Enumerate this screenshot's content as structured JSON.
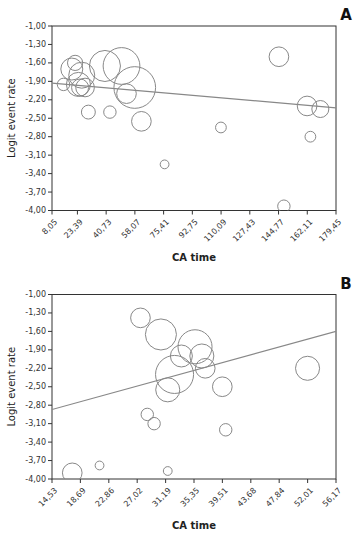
{
  "chart_data": [
    {
      "type": "scatter",
      "title": "A",
      "xlabel": "CA time",
      "ylabel": "Logit event rate",
      "grid": false,
      "series": [
        {
          "type": "scatter",
          "marker": "circle",
          "color": "#888888",
          "x": [
            15,
            20,
            22,
            24,
            25,
            26,
            28,
            30,
            40,
            43,
            50,
            53,
            58,
            62,
            76,
            110,
            145,
            148,
            162,
            164,
            170
          ],
          "values": [
            -1.95,
            -1.7,
            -1.6,
            -1.95,
            -2.0,
            -1.8,
            -2.0,
            -2.4,
            -1.65,
            -2.4,
            -1.65,
            -2.1,
            -2.0,
            -2.55,
            -3.25,
            -2.65,
            -1.5,
            -3.93,
            -2.3,
            -2.8,
            -2.35
          ],
          "sizes": [
            80,
            250,
            120,
            300,
            150,
            350,
            180,
            100,
            500,
            80,
            700,
            200,
            900,
            200,
            40,
            60,
            200,
            80,
            200,
            60,
            150
          ]
        },
        {
          "type": "line",
          "color": "#888888",
          "x": [
            8.05,
            179.45
          ],
          "values": [
            -1.93,
            -2.33
          ]
        }
      ],
      "xlim": [
        8.05,
        179.45
      ],
      "ylim": [
        -4.0,
        -1.0
      ],
      "xticks": [
        {
          "value": 8.05,
          "label": "8,05"
        },
        {
          "value": 23.39,
          "label": "23,39"
        },
        {
          "value": 40.73,
          "label": "40,73"
        },
        {
          "value": 58.07,
          "label": "58,07"
        },
        {
          "value": 75.41,
          "label": "75,41"
        },
        {
          "value": 92.75,
          "label": "92,75"
        },
        {
          "value": 110.09,
          "label": "110,09"
        },
        {
          "value": 127.43,
          "label": "127,43"
        },
        {
          "value": 144.77,
          "label": "144,77"
        },
        {
          "value": 162.11,
          "label": "162,11"
        },
        {
          "value": 179.45,
          "label": "179,45"
        }
      ],
      "yticks": [
        {
          "value": -4.0,
          "label": "-4,00"
        },
        {
          "value": -3.7,
          "label": "-3,70"
        },
        {
          "value": -3.4,
          "label": "-3,40"
        },
        {
          "value": -3.1,
          "label": "-3,10"
        },
        {
          "value": -2.8,
          "label": "-2,80"
        },
        {
          "value": -2.5,
          "label": "-2,50"
        },
        {
          "value": -2.2,
          "label": "-2,20"
        },
        {
          "value": -1.9,
          "label": "-1,90"
        },
        {
          "value": -1.6,
          "label": "-1,60"
        },
        {
          "value": -1.3,
          "label": "-1,30"
        },
        {
          "value": -1.0,
          "label": "-1,00"
        }
      ]
    },
    {
      "type": "scatter",
      "title": "B",
      "xlabel": "CA time",
      "ylabel": "Logit event rate",
      "grid": false,
      "series": [
        {
          "type": "scatter",
          "marker": "circle",
          "color": "#888888",
          "x": [
            17.5,
            21.5,
            27.5,
            28.5,
            29.5,
            30.5,
            31.5,
            32.5,
            33.5,
            35.5,
            36.5,
            37.0,
            39.5,
            40.0,
            31.5,
            52.0
          ],
          "values": [
            -3.9,
            -3.78,
            -1.38,
            -2.95,
            -3.1,
            -1.65,
            -2.55,
            -2.3,
            -2.0,
            -1.85,
            -2.0,
            -2.2,
            -2.5,
            -3.2,
            -3.87,
            -2.2
          ],
          "sizes": [
            200,
            40,
            200,
            80,
            80,
            500,
            300,
            750,
            250,
            600,
            300,
            200,
            200,
            80,
            40,
            300
          ]
        },
        {
          "type": "line",
          "color": "#888888",
          "x": [
            14.53,
            56.17
          ],
          "values": [
            -2.87,
            -1.6
          ]
        }
      ],
      "xlim": [
        14.53,
        56.17
      ],
      "ylim": [
        -4.0,
        -1.0
      ],
      "xticks": [
        {
          "value": 14.53,
          "label": "14,53"
        },
        {
          "value": 18.69,
          "label": "18,69"
        },
        {
          "value": 22.86,
          "label": "22,86"
        },
        {
          "value": 27.02,
          "label": "27,02"
        },
        {
          "value": 31.19,
          "label": "31,19"
        },
        {
          "value": 35.35,
          "label": "35,35"
        },
        {
          "value": 39.51,
          "label": "39,51"
        },
        {
          "value": 43.68,
          "label": "43,68"
        },
        {
          "value": 47.84,
          "label": "47,84"
        },
        {
          "value": 52.01,
          "label": "52,01"
        },
        {
          "value": 56.17,
          "label": "56,17"
        }
      ],
      "yticks": [
        {
          "value": -4.0,
          "label": "-4,00"
        },
        {
          "value": -3.7,
          "label": "-3,70"
        },
        {
          "value": -3.4,
          "label": "-3,40"
        },
        {
          "value": -3.1,
          "label": "-3,10"
        },
        {
          "value": -2.8,
          "label": "-2,80"
        },
        {
          "value": -2.5,
          "label": "-2,50"
        },
        {
          "value": -2.2,
          "label": "-2,20"
        },
        {
          "value": -1.9,
          "label": "-1,90"
        },
        {
          "value": -1.6,
          "label": "-1,60"
        },
        {
          "value": -1.3,
          "label": "-1,30"
        },
        {
          "value": -1.0,
          "label": "-1,00"
        }
      ]
    }
  ]
}
